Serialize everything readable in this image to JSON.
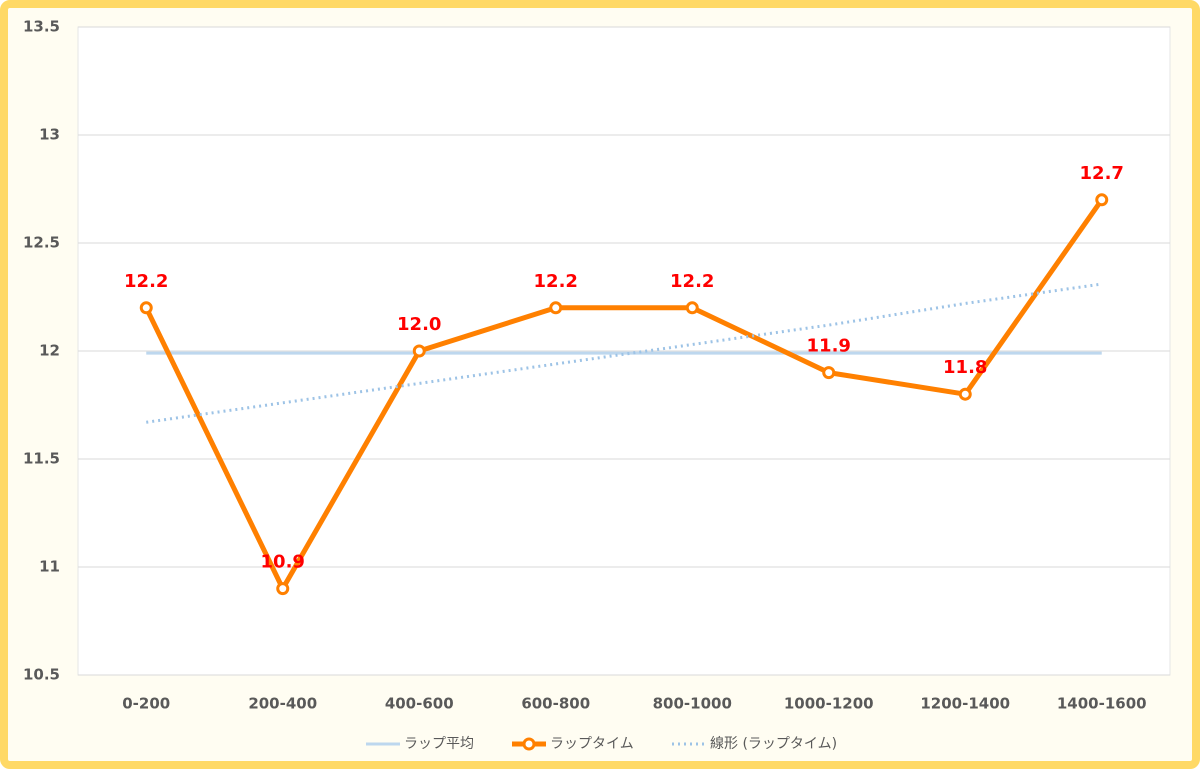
{
  "chart_data": {
    "type": "line",
    "categories": [
      "0-200",
      "200-400",
      "400-600",
      "600-800",
      "800-1000",
      "1000-1200",
      "1200-1400",
      "1400-1600"
    ],
    "series": [
      {
        "name": "ラップ平均",
        "color": "#bdd7ee",
        "style": "solid",
        "values": [
          11.99,
          11.99,
          11.99,
          11.99,
          11.99,
          11.99,
          11.99,
          11.99
        ]
      },
      {
        "name": "ラップタイム",
        "color": "#ff8000",
        "style": "marker",
        "values": [
          12.2,
          10.9,
          12.0,
          12.2,
          12.2,
          11.9,
          11.8,
          12.7
        ],
        "value_labels": [
          "12.2",
          "10.9",
          "12.0",
          "12.2",
          "12.2",
          "11.9",
          "11.8",
          "12.7"
        ]
      },
      {
        "name": "線形 (ラップタイム)",
        "color": "#9dc3e6",
        "style": "dotted",
        "values": [
          11.67,
          11.76,
          11.85,
          11.94,
          12.03,
          12.12,
          12.22,
          12.31
        ]
      }
    ],
    "ylim": [
      10.5,
      13.5
    ],
    "yticks": [
      10.5,
      11,
      11.5,
      12,
      12.5,
      13,
      13.5
    ],
    "grid": true,
    "legend": "bottom"
  }
}
